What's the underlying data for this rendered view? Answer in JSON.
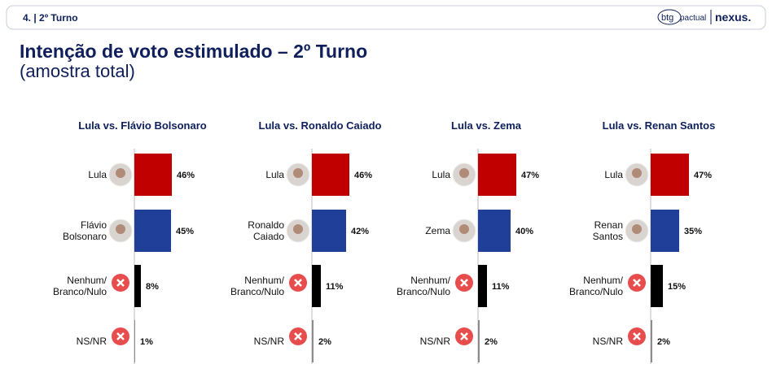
{
  "header": {
    "section": "4. | 2º Turno",
    "logo_mark": "btg",
    "logo_sub": "pactual",
    "logo_brand": "nexus."
  },
  "title": "Intenção de voto estimulado – 2º Turno",
  "subtitle": "(amostra total)",
  "chart_data": [
    {
      "type": "bar",
      "orientation": "horizontal",
      "title": "Lula vs. Flávio Bolsonaro",
      "categories": [
        "Lula",
        "Flávio\nBolsonaro",
        "Nenhum/\nBranco/Nulo",
        "NS/NR"
      ],
      "values": [
        46,
        45,
        8,
        1
      ],
      "value_labels": [
        "46%",
        "45%",
        "8%",
        "1%"
      ],
      "colors": [
        "#c00000",
        "#1f3f99",
        "#000000",
        "#8c8c8c"
      ],
      "xlim": [
        0,
        100
      ]
    },
    {
      "type": "bar",
      "orientation": "horizontal",
      "title": "Lula vs. Ronaldo Caiado",
      "categories": [
        "Lula",
        "Ronaldo\nCaiado",
        "Nenhum/\nBranco/Nulo",
        "NS/NR"
      ],
      "values": [
        46,
        42,
        11,
        2
      ],
      "value_labels": [
        "46%",
        "42%",
        "11%",
        "2%"
      ],
      "colors": [
        "#c00000",
        "#1f3f99",
        "#000000",
        "#8c8c8c"
      ],
      "xlim": [
        0,
        100
      ]
    },
    {
      "type": "bar",
      "orientation": "horizontal",
      "title": "Lula vs. Zema",
      "categories": [
        "Lula",
        "Zema",
        "Nenhum/\nBranco/Nulo",
        "NS/NR"
      ],
      "values": [
        47,
        40,
        11,
        2
      ],
      "value_labels": [
        "47%",
        "40%",
        "11%",
        "2%"
      ],
      "colors": [
        "#c00000",
        "#1f3f99",
        "#000000",
        "#8c8c8c"
      ],
      "xlim": [
        0,
        100
      ]
    },
    {
      "type": "bar",
      "orientation": "horizontal",
      "title": "Lula vs. Renan Santos",
      "categories": [
        "Lula",
        "Renan\nSantos",
        "Nenhum/\nBranco/Nulo",
        "NS/NR"
      ],
      "values": [
        47,
        35,
        15,
        2
      ],
      "value_labels": [
        "47%",
        "35%",
        "15%",
        "2%"
      ],
      "colors": [
        "#c00000",
        "#1f3f99",
        "#000000",
        "#8c8c8c"
      ],
      "xlim": [
        0,
        100
      ]
    }
  ]
}
